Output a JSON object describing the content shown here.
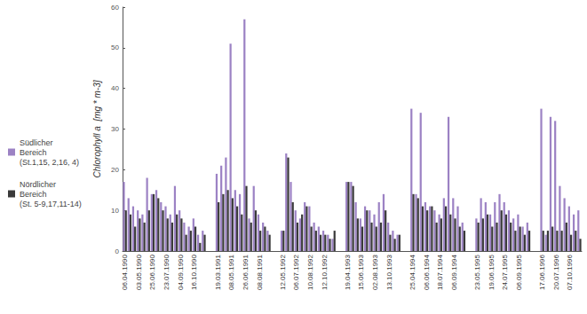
{
  "chart_data": {
    "type": "bar",
    "y_label": "Chlorophyll a  [mg * m-3]",
    "categories": [
      "06.04.1990",
      null,
      null,
      "03.05.1990",
      null,
      null,
      "25.06.1990",
      null,
      null,
      "23.07.1990",
      null,
      null,
      "04.09.1990",
      null,
      null,
      "16.10.1990",
      null,
      null,
      null,
      null,
      "19.03.1991",
      null,
      null,
      "08.05.1991",
      null,
      null,
      "26.06.1991",
      null,
      null,
      "08.08.1991",
      null,
      null,
      null,
      null,
      "12.05.1992",
      null,
      null,
      "06.07.1992",
      null,
      null,
      "10.08.1992",
      null,
      null,
      "12.10.1992",
      null,
      null,
      null,
      null,
      "19.04.1993",
      null,
      null,
      "15.06.1993",
      null,
      null,
      "02.08.1993",
      null,
      null,
      "13.10.1993",
      null,
      null,
      null,
      null,
      "25.04.1994",
      null,
      null,
      "06.06.1994",
      null,
      null,
      "18.07.1994",
      null,
      null,
      "06.09.1994",
      null,
      null,
      null,
      null,
      "23.05.1995",
      null,
      null,
      "19.06.1995",
      null,
      null,
      "24.07.1995",
      null,
      null,
      "06.09.1995",
      null,
      null,
      null,
      null,
      "17.06.1996",
      null,
      null,
      "20.07.1996",
      null,
      null,
      "07.10.1996",
      null,
      null
    ],
    "series": [
      {
        "name": "Südlicher\nBereich\n(St.1,15, 2,16, 4)",
        "color": "#9c82c4",
        "values": [
          17,
          13,
          11,
          10,
          9,
          18,
          14,
          15,
          12,
          11,
          9,
          16,
          10,
          7,
          6,
          8,
          4,
          5,
          null,
          null,
          19,
          21,
          23,
          51,
          15,
          14,
          57,
          8,
          16,
          9,
          7,
          5,
          null,
          null,
          5,
          24,
          17,
          10,
          8,
          12,
          11,
          7,
          6,
          5,
          4,
          3,
          null,
          null,
          17,
          17,
          12,
          8,
          11,
          10,
          9,
          12,
          14,
          7,
          5,
          4,
          null,
          null,
          35,
          14,
          34,
          12,
          11,
          10,
          9,
          13,
          33,
          13,
          11,
          7,
          null,
          null,
          8,
          13,
          12,
          9,
          12,
          14,
          12,
          10,
          8,
          9,
          6,
          7,
          null,
          null,
          35,
          4,
          33,
          32,
          16,
          13,
          11,
          9,
          10
        ]
      },
      {
        "name": "Nördlicher\nBereich\n(St. 5-9,17,11-14)",
        "color": "#3a3a3a",
        "values": [
          10,
          9,
          6,
          8,
          7,
          10,
          14,
          13,
          10,
          8,
          7,
          9,
          8,
          4,
          5,
          6,
          2,
          4,
          null,
          null,
          12,
          14,
          15,
          13,
          11,
          9,
          16,
          7,
          10,
          5,
          6,
          4,
          null,
          null,
          5,
          23,
          12,
          7,
          9,
          11,
          6,
          5,
          4,
          4,
          3,
          5,
          null,
          null,
          17,
          16,
          8,
          6,
          10,
          7,
          6,
          7,
          10,
          4,
          3,
          4,
          null,
          null,
          14,
          13,
          11,
          10,
          11,
          7,
          8,
          11,
          9,
          8,
          6,
          5,
          null,
          null,
          7,
          8,
          9,
          6,
          7,
          10,
          9,
          7,
          5,
          6,
          4,
          5,
          null,
          null,
          5,
          5,
          6,
          5,
          5,
          7,
          4,
          5,
          3
        ]
      }
    ],
    "ylim": [
      0,
      60
    ],
    "yticks": [
      0,
      10,
      20,
      30,
      40,
      50,
      60
    ],
    "grid": false,
    "legend": "left"
  }
}
